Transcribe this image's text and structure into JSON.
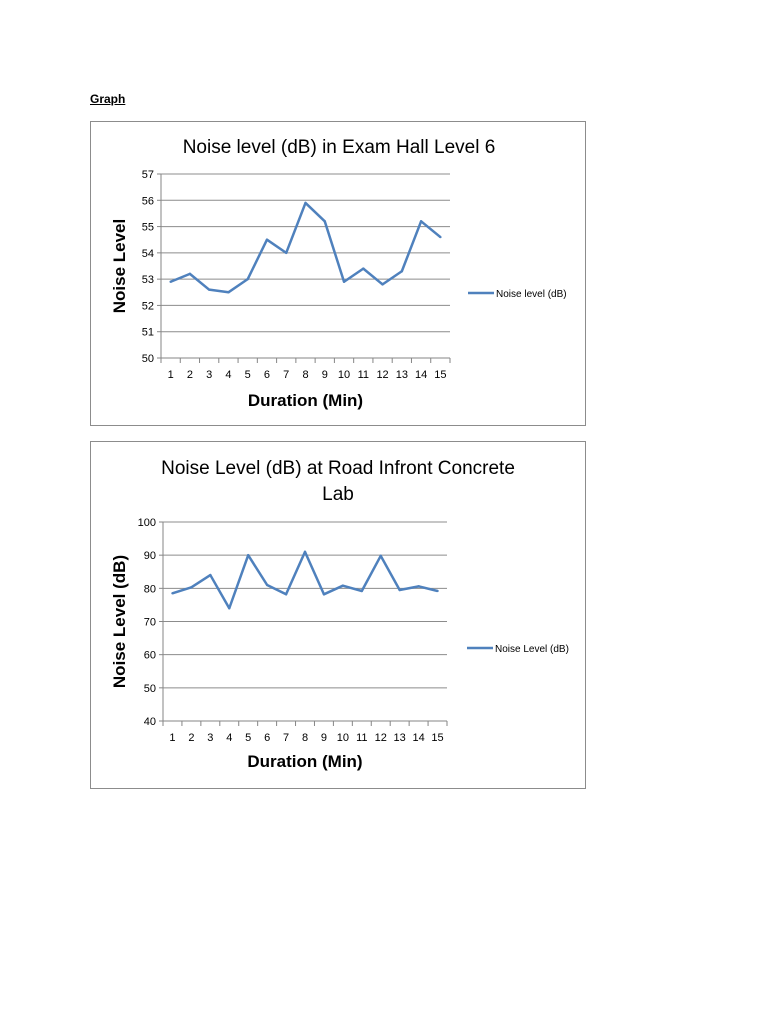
{
  "page": {
    "heading": "Graph"
  },
  "chart_data": [
    {
      "type": "line",
      "title": "Noise level (dB) in Exam Hall Level 6",
      "title_lines": [
        "Noise level (dB) in Exam Hall Level 6"
      ],
      "xlabel": "Duration (Min)",
      "ylabel": "Noise Level",
      "categories": [
        "1",
        "2",
        "3",
        "4",
        "5",
        "6",
        "7",
        "8",
        "9",
        "10",
        "11",
        "12",
        "13",
        "14",
        "15"
      ],
      "series": [
        {
          "name": "Noise level (dB)",
          "color": "#4f81bd",
          "values": [
            52.9,
            53.2,
            52.6,
            52.5,
            53.0,
            54.5,
            54.0,
            55.9,
            55.2,
            52.9,
            53.4,
            52.8,
            53.3,
            55.2,
            54.6
          ]
        }
      ],
      "ylim": [
        50,
        57
      ],
      "yticks": [
        50,
        51,
        52,
        53,
        54,
        55,
        56,
        57
      ],
      "grid": true,
      "legend": "right"
    },
    {
      "type": "line",
      "title": "Noise Level (dB) at Road Infront Concrete Lab",
      "title_lines": [
        "Noise Level (dB) at Road Infront Concrete",
        "Lab"
      ],
      "xlabel": "Duration (Min)",
      "ylabel": "Noise Level (dB)",
      "categories": [
        "1",
        "2",
        "3",
        "4",
        "5",
        "6",
        "7",
        "8",
        "9",
        "10",
        "11",
        "12",
        "13",
        "14",
        "15"
      ],
      "series": [
        {
          "name": "Noise Level (dB)",
          "color": "#4f81bd",
          "values": [
            78.5,
            80.3,
            84.0,
            74.0,
            90.0,
            81.0,
            78.2,
            91.0,
            78.2,
            80.8,
            79.2,
            89.8,
            79.5,
            80.6,
            79.2
          ]
        }
      ],
      "ylim": [
        40,
        100
      ],
      "yticks": [
        40,
        50,
        60,
        70,
        80,
        90,
        100
      ],
      "grid": true,
      "legend": "right"
    }
  ]
}
